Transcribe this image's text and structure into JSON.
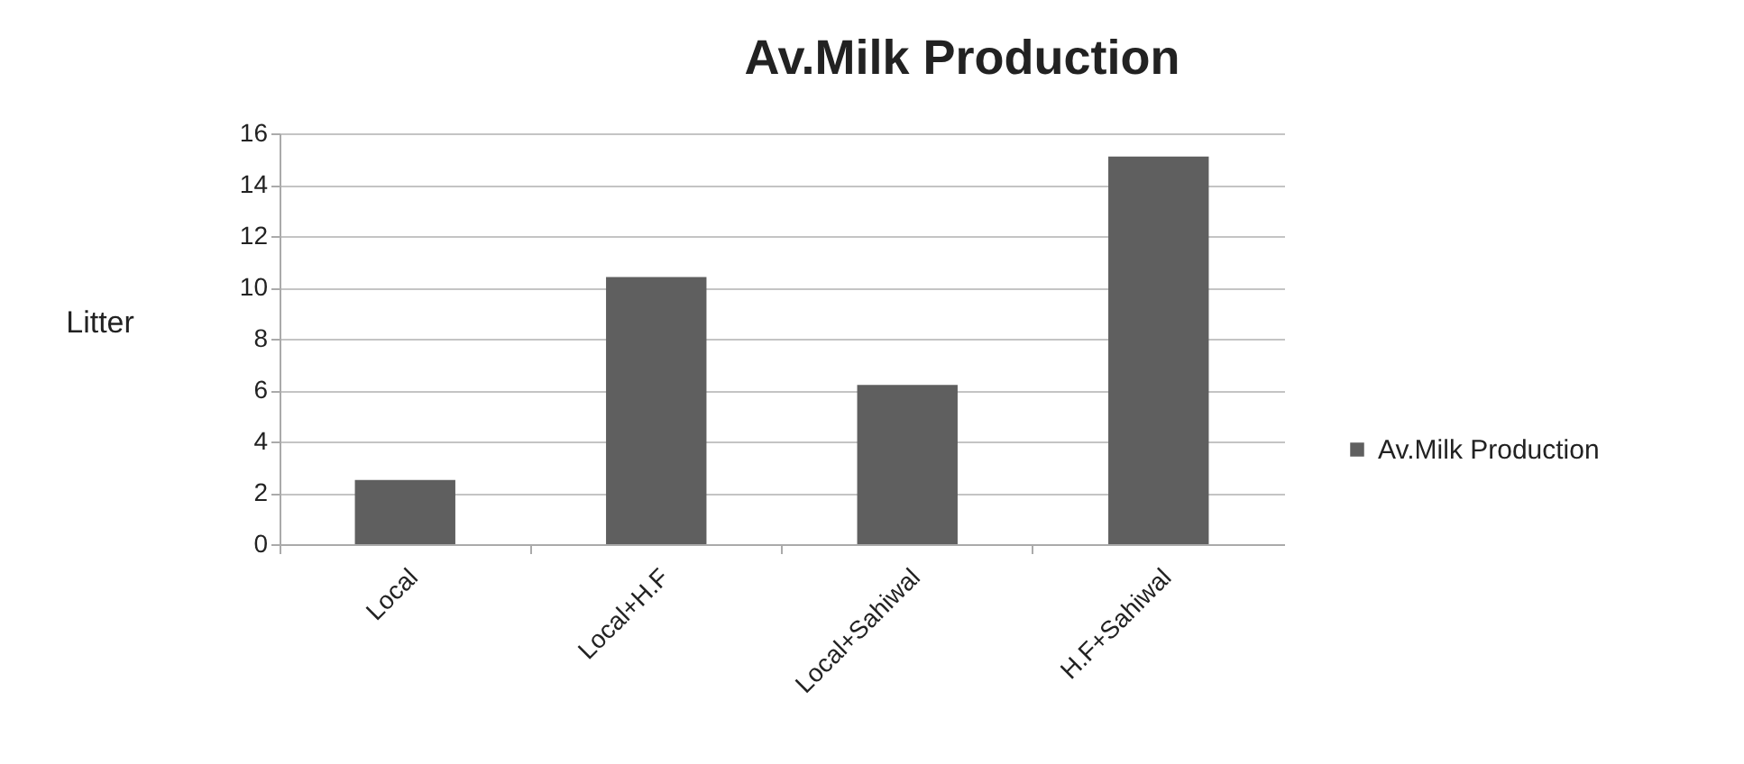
{
  "chart_data": {
    "type": "bar",
    "title": "Av.Milk Production",
    "ylabel": "Litter",
    "categories": [
      "Local",
      "Local+H.F",
      "Local+Sahiwal",
      "H.F+Sahiwal"
    ],
    "series": [
      {
        "name": "Av.Milk Production",
        "color": "#5f5f5f",
        "values": [
          2.5,
          10.4,
          6.2,
          15.1
        ]
      }
    ],
    "ylim": [
      0,
      16
    ],
    "yticks": [
      0,
      2,
      4,
      6,
      8,
      10,
      12,
      14,
      16
    ],
    "grid": "y",
    "legend": "right"
  }
}
